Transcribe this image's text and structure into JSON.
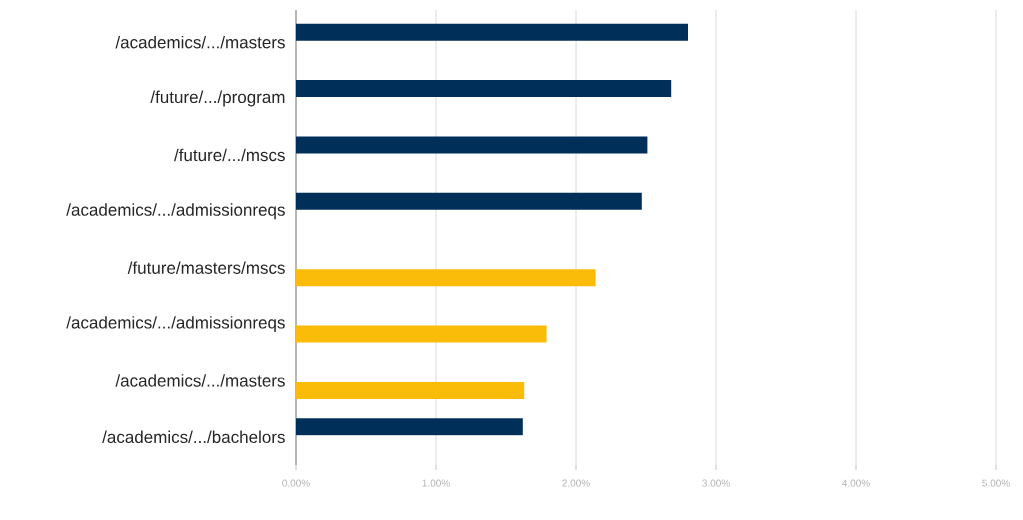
{
  "chart_data": {
    "type": "bar",
    "orientation": "horizontal",
    "categories": [
      "/academics/.../masters",
      "/future/.../program",
      "/future/.../mscs",
      "/academics/.../admissionreqs",
      "/future/masters/mscs",
      "/academics/.../admissionreqs",
      "/academics/.../masters",
      "/academics/.../bachelors"
    ],
    "series": [
      {
        "color": "#002f5a",
        "values": [
          2.8,
          2.68,
          2.51,
          2.47,
          null,
          null,
          null,
          1.62
        ]
      },
      {
        "color": "#fbbc09",
        "values": [
          null,
          null,
          null,
          null,
          2.14,
          1.79,
          1.63,
          null
        ]
      }
    ],
    "xlim": [
      0,
      5
    ],
    "xticks": [
      {
        "value": 0,
        "label": "0.00%"
      },
      {
        "value": 1,
        "label": "1.00%"
      },
      {
        "value": 2,
        "label": "2.00%"
      },
      {
        "value": 3,
        "label": "3.00%"
      },
      {
        "value": 4,
        "label": "4.00%"
      },
      {
        "value": 5,
        "label": "5.00%"
      }
    ],
    "grid": "x"
  }
}
